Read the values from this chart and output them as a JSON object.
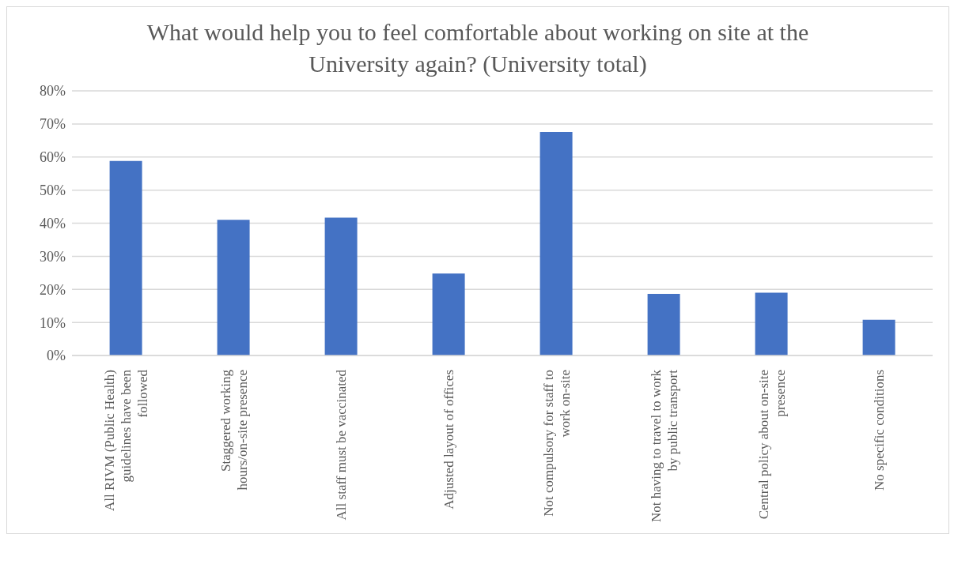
{
  "chart_data": {
    "type": "bar",
    "title": "What would help you to feel comfortable about working on site at the University again? (University total)",
    "categories": [
      "All RIVM (Public Health) guidelines have been followed",
      "Staggered working hours/on-site presence",
      "All staff must be vaccinated",
      "Adjusted layout of offices",
      "Not compulsory for staff to work on-site",
      "Not having to travel to work by public transport",
      "Central policy about on-site presence",
      "No specific conditions"
    ],
    "values": [
      58.8,
      41,
      41.7,
      24.8,
      67.6,
      18.6,
      19,
      10.8
    ],
    "color": "#4472c4",
    "ylim": [
      0,
      80
    ],
    "yticks": [
      {
        "value": 0,
        "label": "0%"
      },
      {
        "value": 10,
        "label": "10%"
      },
      {
        "value": 20,
        "label": "20%"
      },
      {
        "value": 30,
        "label": "30%"
      },
      {
        "value": 40,
        "label": "40%"
      },
      {
        "value": 50,
        "label": "50%"
      },
      {
        "value": 60,
        "label": "60%"
      },
      {
        "value": 70,
        "label": "70%"
      },
      {
        "value": 80,
        "label": "80%"
      }
    ],
    "grid": "y"
  }
}
